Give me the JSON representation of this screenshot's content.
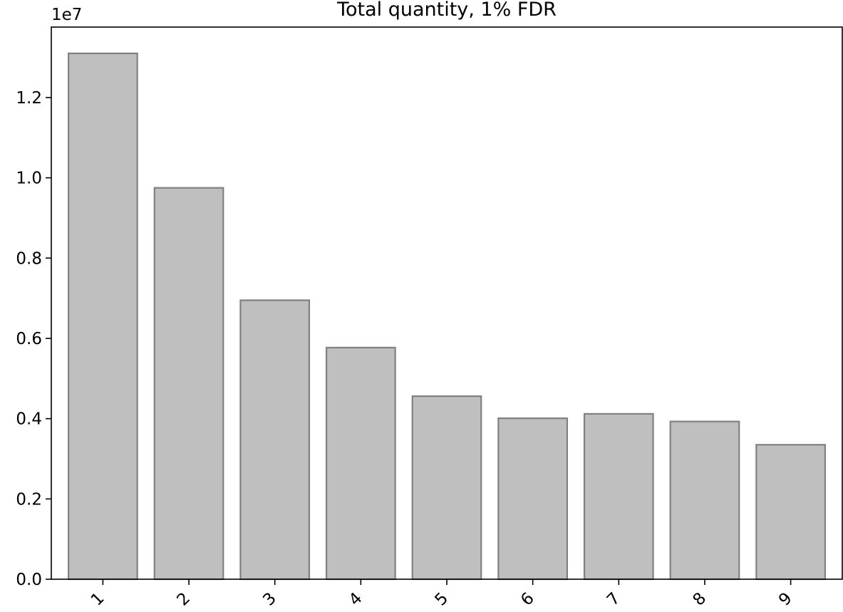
{
  "chart_data": {
    "type": "bar",
    "title": "Total quantity, 1% FDR",
    "xlabel": "",
    "ylabel": "",
    "offset_label": "1e7",
    "categories": [
      "1",
      "2",
      "3",
      "4",
      "5",
      "6",
      "7",
      "8",
      "9"
    ],
    "values": [
      13100000,
      9750000,
      6950000,
      5770000,
      4560000,
      4010000,
      4120000,
      3930000,
      3350000
    ],
    "y_tick_labels": [
      "0.0",
      "0.2",
      "0.4",
      "0.6",
      "0.8",
      "1.0",
      "1.2"
    ],
    "y_tick_values": [
      0,
      2000000,
      4000000,
      6000000,
      8000000,
      10000000,
      12000000
    ],
    "ylim": [
      0,
      13755000
    ],
    "x_tick_rotation": "45 degrees",
    "grid": false,
    "legend": "none",
    "colors": {
      "bar_fill": "#bfbfbf",
      "bar_edge": "#808080",
      "axis": "#000000"
    }
  }
}
